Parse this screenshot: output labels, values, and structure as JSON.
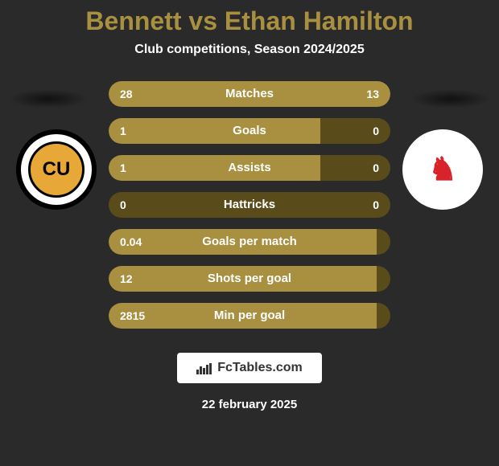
{
  "header": {
    "title": "Bennett vs Ethan Hamilton",
    "subtitle": "Club competitions, Season 2024/2025",
    "title_color": "#a89040",
    "title_fontsize": 32
  },
  "crests": {
    "left": {
      "text": "CU",
      "bg": "#e8a838",
      "ring": "#000000",
      "outer": "#ffffff"
    },
    "right": {
      "text": "♞",
      "bg": "#ffffff",
      "color": "#d8232a"
    }
  },
  "bars": {
    "track_color": "#5a4c1a",
    "fill_color": "#a89040",
    "height": 32,
    "radius": 16
  },
  "stats": [
    {
      "label": "Matches",
      "left_val": "28",
      "right_val": "13",
      "left_pct": 68,
      "right_pct": 32
    },
    {
      "label": "Goals",
      "left_val": "1",
      "right_val": "0",
      "left_pct": 75,
      "right_pct": 0
    },
    {
      "label": "Assists",
      "left_val": "1",
      "right_val": "0",
      "left_pct": 75,
      "right_pct": 0
    },
    {
      "label": "Hattricks",
      "left_val": "0",
      "right_val": "0",
      "left_pct": 0,
      "right_pct": 0
    },
    {
      "label": "Goals per match",
      "left_val": "0.04",
      "right_val": "",
      "left_pct": 95,
      "right_pct": 0
    },
    {
      "label": "Shots per goal",
      "left_val": "12",
      "right_val": "",
      "left_pct": 95,
      "right_pct": 0
    },
    {
      "label": "Min per goal",
      "left_val": "2815",
      "right_val": "",
      "left_pct": 95,
      "right_pct": 0
    }
  ],
  "branding": {
    "text": "FcTables.com",
    "icon_bars": [
      6,
      10,
      8,
      12,
      14
    ]
  },
  "footer": {
    "date": "22 february 2025"
  }
}
